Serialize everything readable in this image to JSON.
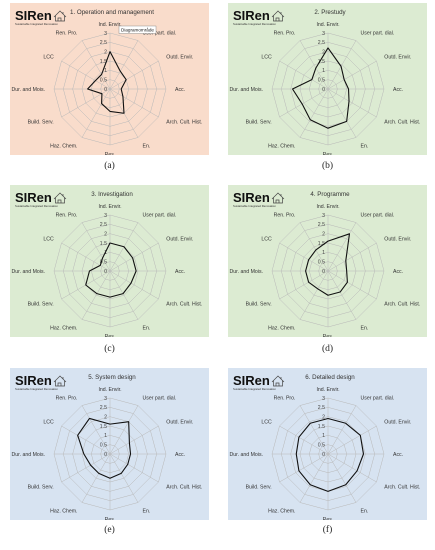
{
  "colors": {
    "panel_backgrounds": [
      "#f9dccb",
      "#dcebd2",
      "#dcebd2",
      "#dcebd2",
      "#d7e3f1",
      "#d7e3f1"
    ],
    "grid": "#b8b8b8",
    "series": "#111111"
  },
  "logo": {
    "text": "SIRen",
    "tagline": "Sustainable Integrated Renovation",
    "icon": "house-sketch-icon"
  },
  "chart_data": [
    {
      "type": "radar",
      "title": "1. Operation and management",
      "sublabel": "(a)",
      "tooltip": "Diagramområde",
      "axes": [
        "Ind. Envir.",
        "User part. dial.",
        "Outd. Envir.",
        "Acc.",
        "Arch. Cult. Hist.",
        "En.",
        "Res.",
        "Haz. Chem.",
        "Build. Serv.",
        "Dur. and Mois.",
        "LCC",
        "Ren. Pro."
      ],
      "tick_labels": [
        "0",
        "0.5",
        "1",
        "1.5",
        "2",
        "2.5",
        "3"
      ],
      "rlim": [
        0,
        3
      ],
      "grid": true,
      "values": [
        2.0,
        1.1,
        1.0,
        0.6,
        0.8,
        1.5,
        1.2,
        0.9,
        0.5,
        1.2,
        0.9,
        0.9
      ]
    },
    {
      "type": "radar",
      "title": "2. Prestudy",
      "sublabel": "(b)",
      "axes": [
        "Ind. Envir.",
        "User part. dial.",
        "Outd. Envir.",
        "Acc.",
        "Arch. Cult. Hist.",
        "En.",
        "Res.",
        "Haz. Chem.",
        "Build. Serv.",
        "Dur. and Mois.",
        "LCC",
        "Ren. Pro."
      ],
      "tick_labels": [
        "0",
        "0.5",
        "1",
        "1.5",
        "2",
        "2.5",
        "3"
      ],
      "rlim": [
        0,
        3
      ],
      "grid": true,
      "values": [
        2.2,
        1.4,
        1.0,
        1.1,
        1.3,
        2.0,
        2.1,
        1.9,
        1.6,
        1.9,
        1.0,
        1.3
      ]
    },
    {
      "type": "radar",
      "title": "3. Investigation",
      "sublabel": "(c)",
      "axes": [
        "Ind. Envir.",
        "User part. dial.",
        "Outd. Envir.",
        "Acc.",
        "Arch. Cult. Hist.",
        "En.",
        "Res.",
        "Haz. Chem.",
        "Build. Serv.",
        "Dur. and Mois.",
        "LCC",
        "Ren. Pro."
      ],
      "tick_labels": [
        "0",
        "0.5",
        "1",
        "1.5",
        "2",
        "2.5",
        "3"
      ],
      "rlim": [
        0,
        3
      ],
      "grid": true,
      "values": [
        1.5,
        1.5,
        1.4,
        1.4,
        1.3,
        1.4,
        1.4,
        1.4,
        1.5,
        1.1,
        0.6,
        0.8
      ]
    },
    {
      "type": "radar",
      "title": "4. Programme",
      "sublabel": "(d)",
      "axes": [
        "Ind. Envir.",
        "User part. dial.",
        "Outd. Envir.",
        "Acc.",
        "Arch. Cult. Hist.",
        "En.",
        "Res.",
        "Haz. Chem.",
        "Build. Serv.",
        "Dur. and Mois.",
        "LCC",
        "Ren. Pro."
      ],
      "tick_labels": [
        "0",
        "0.5",
        "1",
        "1.5",
        "2",
        "2.5",
        "3"
      ],
      "rlim": [
        0,
        3
      ],
      "grid": true,
      "values": [
        1.6,
        2.3,
        1.1,
        1.0,
        1.2,
        1.3,
        1.3,
        1.1,
        1.2,
        1.2,
        1.2,
        1.3
      ]
    },
    {
      "type": "radar",
      "title": "5. System design",
      "sublabel": "(e)",
      "axes": [
        "Ind. Envir.",
        "User part. dial.",
        "Outd. Envir.",
        "Acc.",
        "Arch. Cult. Hist.",
        "En.",
        "Res.",
        "Haz. Chem.",
        "Build. Serv.",
        "Dur. and Mois.",
        "LCC",
        "Ren. Pro."
      ],
      "tick_labels": [
        "0",
        "0.5",
        "1",
        "1.5",
        "2",
        "2.5",
        "3"
      ],
      "rlim": [
        0,
        3
      ],
      "grid": true,
      "values": [
        1.6,
        2.0,
        1.2,
        1.1,
        1.1,
        1.2,
        1.3,
        1.2,
        1.2,
        1.4,
        2.0,
        2.2
      ]
    },
    {
      "type": "radar",
      "title": "6. Detailed design",
      "sublabel": "(f)",
      "axes": [
        "Ind. Envir.",
        "User part. dial.",
        "Outd. Envir.",
        "Acc.",
        "Arch. Cult. Hist.",
        "En.",
        "Res.",
        "Haz. Chem.",
        "Build. Serv.",
        "Dur. and Mois.",
        "LCC",
        "Ren. Pro."
      ],
      "tick_labels": [
        "0",
        "0.5",
        "1",
        "1.5",
        "2",
        "2.5",
        "3"
      ],
      "rlim": [
        0,
        3
      ],
      "grid": true,
      "values": [
        1.9,
        1.9,
        2.0,
        1.9,
        1.8,
        1.9,
        2.0,
        1.9,
        1.8,
        1.7,
        1.8,
        1.9
      ]
    }
  ]
}
